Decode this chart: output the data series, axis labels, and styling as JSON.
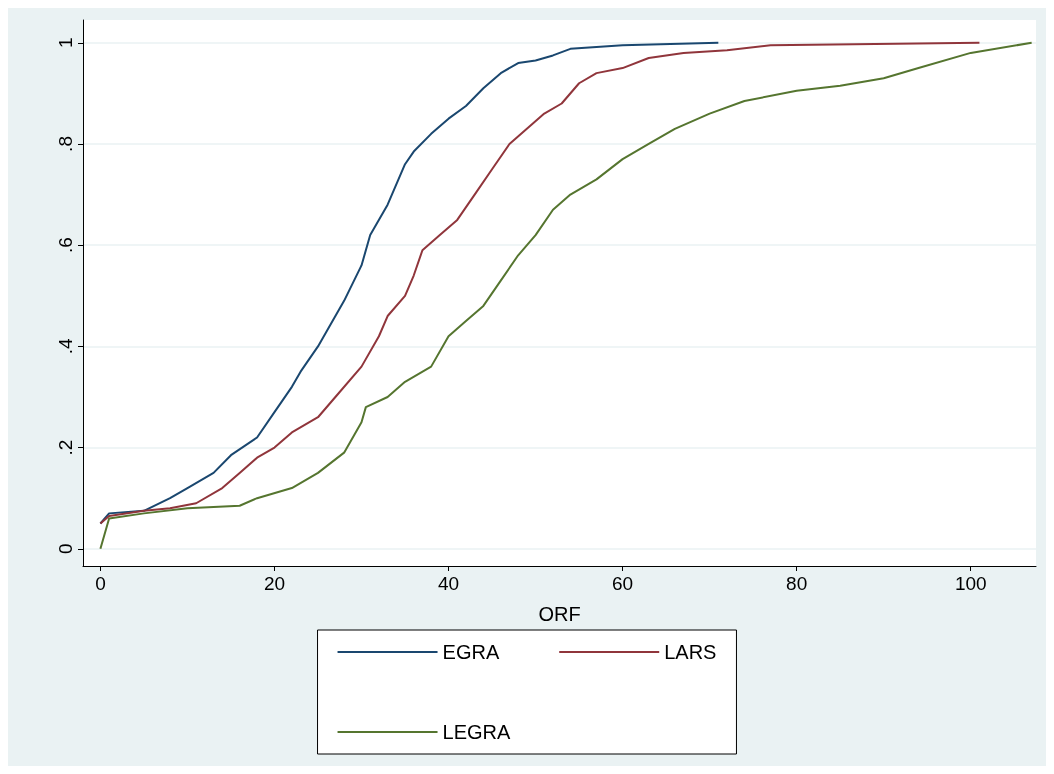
{
  "chart_data": {
    "type": "line",
    "xlabel": "ORF",
    "xlim": [
      -2,
      107.5
    ],
    "xticks": [
      0,
      20,
      40,
      60,
      80,
      100
    ],
    "ylim": [
      -0.034,
      1.045
    ],
    "yticks": [
      {
        "value": 0,
        "label": "0"
      },
      {
        "value": 0.2,
        "label": ".2"
      },
      {
        "value": 0.4,
        "label": ".4"
      },
      {
        "value": 0.6,
        "label": ".6"
      },
      {
        "value": 0.8,
        "label": ".8"
      },
      {
        "value": 1,
        "label": "1"
      }
    ],
    "grid": "y",
    "legend": "bottom",
    "series": [
      {
        "name": "EGRA",
        "color": "#1a476f",
        "x": [
          0,
          1,
          5,
          8,
          10,
          13,
          15,
          18,
          20,
          22,
          23,
          25,
          27,
          28,
          30,
          31,
          33,
          35,
          36,
          38,
          40,
          42,
          44,
          46,
          48,
          50,
          52,
          54,
          60,
          71
        ],
        "values": [
          0.05,
          0.07,
          0.075,
          0.1,
          0.12,
          0.15,
          0.185,
          0.22,
          0.27,
          0.32,
          0.35,
          0.4,
          0.46,
          0.49,
          0.56,
          0.62,
          0.68,
          0.76,
          0.785,
          0.82,
          0.85,
          0.875,
          0.91,
          0.94,
          0.96,
          0.965,
          0.975,
          0.988,
          0.995,
          1.0
        ]
      },
      {
        "name": "LARS",
        "color": "#90353b",
        "x": [
          0,
          1,
          5,
          8,
          11,
          14,
          16,
          18,
          20,
          22,
          25,
          27,
          30,
          32,
          33,
          35,
          36,
          37,
          39,
          41,
          43,
          45,
          47,
          49,
          51,
          53,
          55,
          57,
          60,
          63,
          67,
          72,
          77,
          101
        ],
        "values": [
          0.05,
          0.065,
          0.075,
          0.08,
          0.09,
          0.12,
          0.15,
          0.18,
          0.2,
          0.23,
          0.26,
          0.3,
          0.36,
          0.42,
          0.46,
          0.5,
          0.54,
          0.59,
          0.62,
          0.65,
          0.7,
          0.75,
          0.8,
          0.83,
          0.86,
          0.88,
          0.92,
          0.94,
          0.95,
          0.97,
          0.98,
          0.985,
          0.995,
          1.0
        ]
      },
      {
        "name": "LEGRA",
        "color": "#55752f",
        "x": [
          0,
          1,
          5,
          10,
          16,
          18,
          22,
          25,
          28,
          30,
          30.5,
          33,
          35,
          38,
          40,
          42,
          44,
          46,
          48,
          50,
          52,
          54,
          57,
          60,
          63,
          66,
          70,
          74,
          80,
          85,
          90,
          94,
          100,
          107
        ],
        "values": [
          0.0,
          0.06,
          0.07,
          0.08,
          0.085,
          0.1,
          0.12,
          0.15,
          0.19,
          0.25,
          0.28,
          0.3,
          0.33,
          0.36,
          0.42,
          0.45,
          0.48,
          0.53,
          0.58,
          0.62,
          0.67,
          0.7,
          0.73,
          0.77,
          0.8,
          0.83,
          0.86,
          0.885,
          0.905,
          0.915,
          0.93,
          0.95,
          0.98,
          1.0
        ]
      }
    ]
  }
}
